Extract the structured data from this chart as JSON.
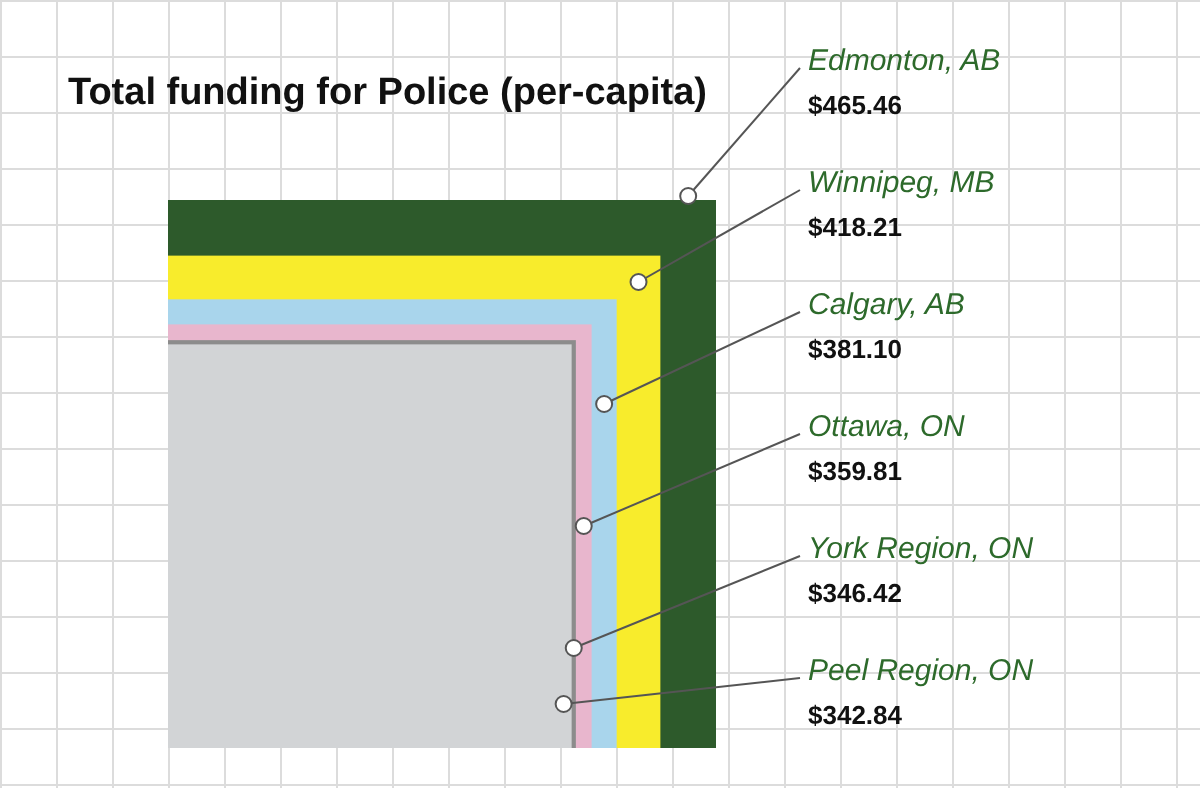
{
  "chart_data": {
    "type": "other",
    "title": "Total funding for Police (per-capita)",
    "categories": [
      "Edmonton, AB",
      "Winnipeg, MB",
      "Calgary, AB",
      "Ottawa, ON",
      "York Region, ON",
      "Peel Region, ON"
    ],
    "values": [
      465.46,
      418.21,
      381.1,
      359.81,
      346.42,
      342.84
    ],
    "value_labels": [
      "$465.46",
      "$418.21",
      "$381.10",
      "$359.81",
      "$346.42",
      "$342.84"
    ],
    "colors": [
      "#2d5a2b",
      "#f8ec2c",
      "#a9d5ec",
      "#e8b6cd",
      "#8c8c8c",
      "#d2d4d6"
    ]
  }
}
